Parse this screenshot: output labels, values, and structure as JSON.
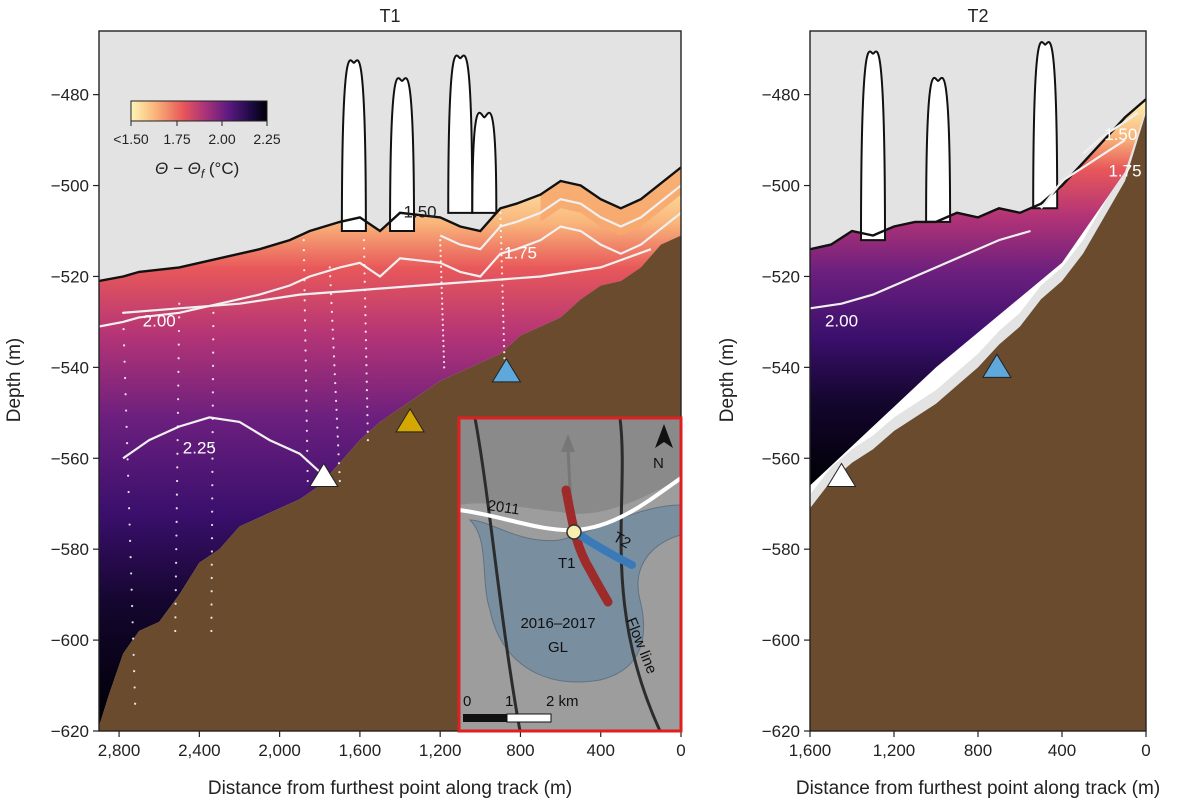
{
  "chart_data": [
    {
      "type": "heatmap",
      "title": "T1",
      "xlabel": "Distance from furthest point along track (m)",
      "ylabel": "Depth (m)",
      "xlim": [
        2900,
        0
      ],
      "ylim": [
        -620,
        -466
      ],
      "xticks": [
        2800,
        2400,
        2000,
        1600,
        1200,
        800,
        400,
        0
      ],
      "xtick_labels": [
        "2,800",
        "2,400",
        "2,000",
        "1,600",
        "1,200",
        "800",
        "400",
        "0"
      ],
      "yticks": [
        -480,
        -500,
        -520,
        -540,
        -560,
        -580,
        -600,
        -620
      ],
      "ytick_labels": [
        "−480",
        "−500",
        "−520",
        "−540",
        "−560",
        "−580",
        "−600",
        "−620"
      ],
      "contours": [
        {
          "level": 1.5,
          "label": "1.50",
          "label_x": 1300,
          "label_y": -507
        },
        {
          "level": 1.75,
          "label": "1.75",
          "label_x": 800,
          "label_y": -516
        },
        {
          "level": 2.0,
          "label": "2.00",
          "label_x": 2600,
          "label_y": -531
        },
        {
          "level": 2.25,
          "label": "2.25",
          "label_x": 2400,
          "label_y": -559
        }
      ],
      "ice_base": [
        [
          2900,
          -521
        ],
        [
          2780,
          -520
        ],
        [
          2700,
          -519
        ],
        [
          2500,
          -518
        ],
        [
          2300,
          -516
        ],
        [
          2100,
          -514
        ],
        [
          1950,
          -512
        ],
        [
          1850,
          -510
        ],
        [
          1700,
          -508
        ],
        [
          1600,
          -507
        ],
        [
          1500,
          -510
        ],
        [
          1400,
          -506
        ],
        [
          1200,
          -507
        ],
        [
          1100,
          -509
        ],
        [
          1000,
          -510
        ],
        [
          900,
          -505
        ],
        [
          820,
          -504
        ],
        [
          700,
          -502
        ],
        [
          600,
          -499
        ],
        [
          500,
          -500
        ],
        [
          400,
          -503
        ],
        [
          300,
          -505
        ],
        [
          200,
          -503
        ],
        [
          0,
          -496
        ]
      ],
      "seabed": [
        [
          2900,
          -619
        ],
        [
          2850,
          -612
        ],
        [
          2780,
          -603
        ],
        [
          2700,
          -598
        ],
        [
          2600,
          -596
        ],
        [
          2500,
          -590
        ],
        [
          2400,
          -583
        ],
        [
          2300,
          -580
        ],
        [
          2200,
          -575
        ],
        [
          2100,
          -573
        ],
        [
          2000,
          -571
        ],
        [
          1900,
          -569
        ],
        [
          1800,
          -566
        ],
        [
          1700,
          -561
        ],
        [
          1600,
          -556
        ],
        [
          1500,
          -552
        ],
        [
          1400,
          -549
        ],
        [
          1300,
          -546
        ],
        [
          1200,
          -543
        ],
        [
          1100,
          -541
        ],
        [
          1000,
          -539
        ],
        [
          900,
          -537
        ],
        [
          800,
          -533
        ],
        [
          700,
          -531
        ],
        [
          600,
          -529
        ],
        [
          500,
          -525
        ],
        [
          400,
          -522
        ],
        [
          300,
          -521
        ],
        [
          200,
          -518
        ],
        [
          100,
          -513
        ],
        [
          0,
          -511
        ]
      ],
      "keels": [
        {
          "x": 1630,
          "peak": -473,
          "base": -510
        },
        {
          "x": 1390,
          "peak": -477,
          "base": -510
        },
        {
          "x": 1100,
          "peak": -472,
          "base": -506
        },
        {
          "x": 980,
          "peak": -485,
          "base": -506
        }
      ],
      "markers": [
        {
          "x": 1780,
          "depth": -564,
          "color": "#ffffff"
        },
        {
          "x": 1350,
          "depth": -552,
          "color": "#d4a800"
        },
        {
          "x": 870,
          "depth": -541,
          "color": "#5ea8dc"
        }
      ],
      "colorbar": {
        "ticks": [
          "<1.50",
          "1.75",
          "2.00",
          "2.25"
        ],
        "label": "Θ − Θ",
        "label_sub": "f",
        "label_unit": " (°C)",
        "min": 1.5,
        "max": 2.25,
        "colors": [
          "#fdf6b6",
          "#f9b47a",
          "#f0664f",
          "#c53a6f",
          "#8c2981",
          "#3b0f70",
          "#000004"
        ]
      },
      "inset": {
        "label_year": "2011",
        "label_t1": "T1",
        "label_t2": "T2",
        "label_gl_top": "2016–2017",
        "label_gl_bottom": "GL",
        "label_flow": "Flow line",
        "label_north": "N",
        "scale_ticks": [
          "0",
          "1",
          "2 km"
        ],
        "border_color": "#e02020",
        "t1_color": "#9e2a2a",
        "t2_color": "#3a7ab8"
      }
    },
    {
      "type": "heatmap",
      "title": "T2",
      "xlabel": "Distance from furthest point along track (m)",
      "ylabel": "Depth (m)",
      "xlim": [
        1600,
        0
      ],
      "ylim": [
        -620,
        -466
      ],
      "xticks": [
        1600,
        1200,
        800,
        400,
        0
      ],
      "xtick_labels": [
        "1,600",
        "1,200",
        "800",
        "400",
        "0"
      ],
      "yticks": [
        -480,
        -500,
        -520,
        -540,
        -560,
        -580,
        -600,
        -620
      ],
      "ytick_labels": [
        "−480",
        "−500",
        "−520",
        "−540",
        "−560",
        "−580",
        "−600",
        "−620"
      ],
      "contours": [
        {
          "level": 1.5,
          "label": "1.50",
          "label_x": 120,
          "label_y": -490
        },
        {
          "level": 1.75,
          "label": "1.75",
          "label_x": 100,
          "label_y": -498
        },
        {
          "level": 2.0,
          "label": "2.00",
          "label_x": 1450,
          "label_y": -531
        }
      ],
      "ice_base": [
        [
          1600,
          -514
        ],
        [
          1500,
          -513
        ],
        [
          1400,
          -510
        ],
        [
          1300,
          -511
        ],
        [
          1200,
          -509
        ],
        [
          1100,
          -508
        ],
        [
          1000,
          -508
        ],
        [
          900,
          -506
        ],
        [
          800,
          -507
        ],
        [
          700,
          -505
        ],
        [
          600,
          -506
        ],
        [
          500,
          -504
        ],
        [
          400,
          -500
        ],
        [
          300,
          -495
        ],
        [
          200,
          -490
        ],
        [
          100,
          -485
        ],
        [
          0,
          -481
        ]
      ],
      "seabed": [
        [
          1600,
          -568
        ],
        [
          1500,
          -562
        ],
        [
          1400,
          -558
        ],
        [
          1300,
          -555
        ],
        [
          1200,
          -551
        ],
        [
          1100,
          -548
        ],
        [
          1000,
          -545
        ],
        [
          900,
          -541
        ],
        [
          800,
          -537
        ],
        [
          700,
          -532
        ],
        [
          600,
          -528
        ],
        [
          500,
          -522
        ],
        [
          400,
          -518
        ],
        [
          300,
          -512
        ],
        [
          200,
          -504
        ],
        [
          100,
          -496
        ],
        [
          0,
          -481
        ]
      ],
      "data_bottom": [
        [
          1600,
          -566
        ],
        [
          1000,
          -540
        ],
        [
          400,
          -517
        ],
        [
          100,
          -497
        ],
        [
          0,
          -483
        ]
      ],
      "keels": [
        {
          "x": 1300,
          "peak": -471,
          "base": -512
        },
        {
          "x": 990,
          "peak": -477,
          "base": -508
        },
        {
          "x": 480,
          "peak": -469,
          "base": -505
        }
      ],
      "markers": [
        {
          "x": 1450,
          "depth": -564,
          "color": "#ffffff"
        },
        {
          "x": 710,
          "depth": -540,
          "color": "#5ea8dc"
        }
      ]
    }
  ]
}
